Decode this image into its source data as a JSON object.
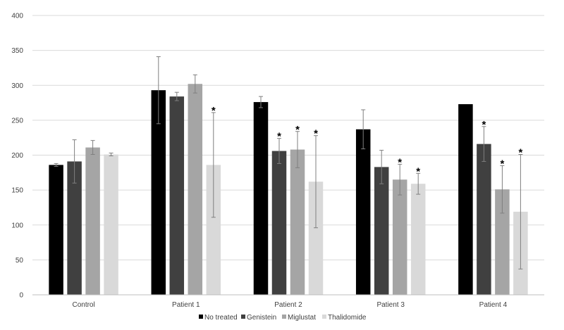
{
  "chart_data": {
    "type": "bar",
    "title": "",
    "xlabel": "",
    "ylabel": "",
    "ylim": [
      0,
      400
    ],
    "yticks": [
      0,
      50,
      100,
      150,
      200,
      250,
      300,
      350,
      400
    ],
    "grid": true,
    "legend_position": "bottom",
    "categories": [
      "Control",
      "Patient 1",
      "Patient 2",
      "Patient 3",
      "Patient 4"
    ],
    "series": [
      {
        "name": "No treated",
        "color": "#000000",
        "values": [
          186,
          293,
          276,
          237,
          273
        ],
        "errors": [
          2,
          48,
          8,
          28,
          0
        ],
        "significant": [
          false,
          false,
          false,
          false,
          false
        ]
      },
      {
        "name": "Genistein",
        "color": "#404040",
        "values": [
          191,
          284,
          206,
          183,
          216
        ],
        "errors": [
          31,
          6,
          18,
          24,
          25
        ],
        "significant": [
          false,
          false,
          true,
          false,
          true
        ]
      },
      {
        "name": "Miglustat",
        "color": "#a5a5a5",
        "values": [
          211,
          302,
          208,
          165,
          151
        ],
        "errors": [
          10,
          13,
          26,
          22,
          34
        ],
        "significant": [
          false,
          false,
          true,
          true,
          true
        ]
      },
      {
        "name": "Thalidomide",
        "color": "#d9d9d9",
        "values": [
          201,
          186,
          162,
          159,
          119
        ],
        "errors": [
          2,
          75,
          66,
          15,
          82
        ],
        "significant": [
          false,
          true,
          true,
          true,
          true
        ]
      }
    ],
    "significance_marker": "*"
  }
}
